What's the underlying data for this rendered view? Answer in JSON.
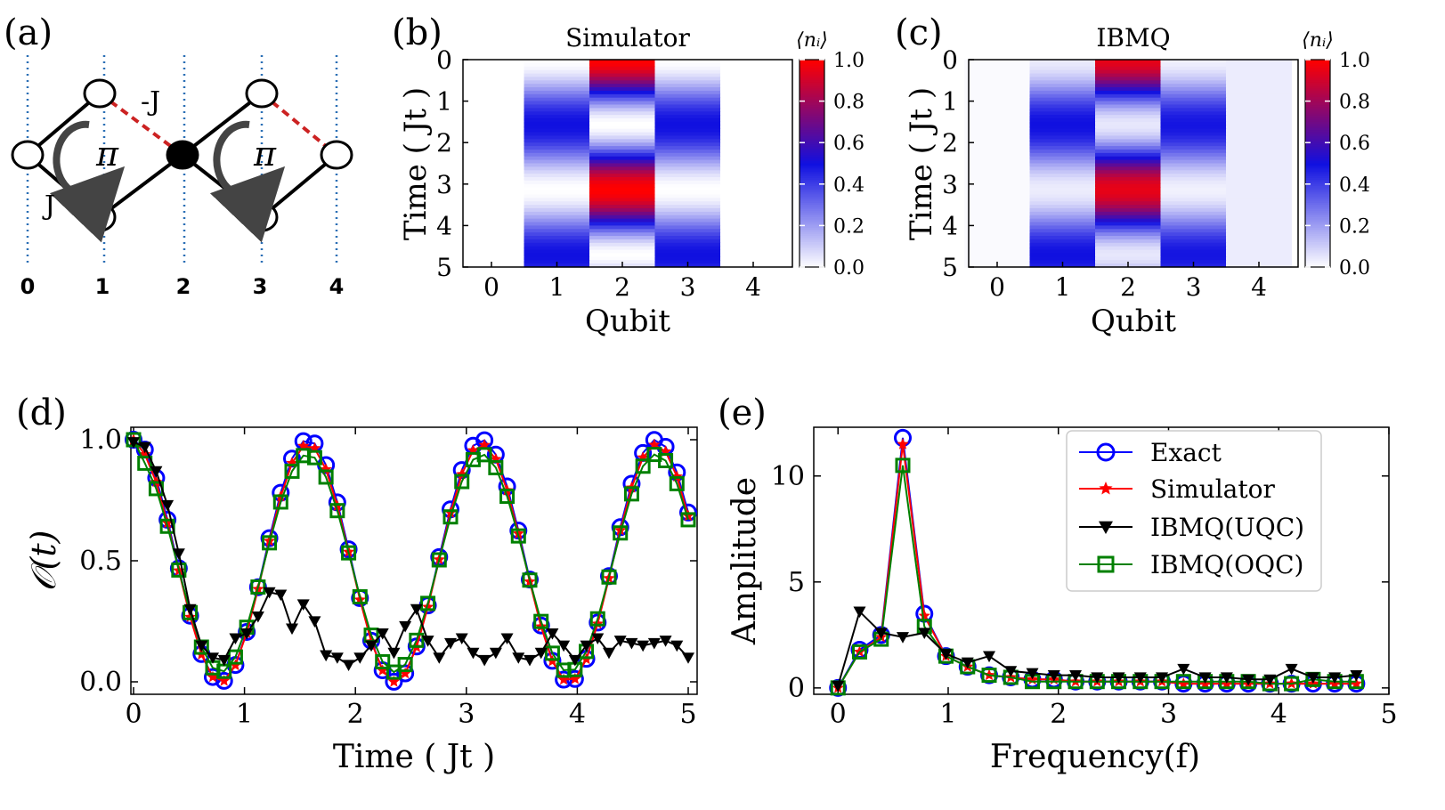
{
  "panel_labels": {
    "a": "(a)",
    "b": "(b)",
    "c": "(c)",
    "d": "(d)",
    "e": "(e)"
  },
  "lattice": {
    "site_labels": [
      "0",
      "1",
      "2",
      "3",
      "4"
    ],
    "coupling_pos": "J",
    "coupling_neg": "-J",
    "flux_left": "π",
    "flux_right": "π"
  },
  "chart_data": [
    {
      "type": "heatmap",
      "id": "b",
      "title": "Simulator",
      "xlabel": "Qubit",
      "ylabel": "Time ( Jt )",
      "xticks": [
        "0",
        "1",
        "2",
        "3",
        "4"
      ],
      "yticks": [
        "0",
        "1",
        "2",
        "3",
        "4",
        "5"
      ],
      "colorbar_label": "⟨nᵢ⟩",
      "colorbar_ticks": [
        "1.0",
        "0.8",
        "0.6",
        "0.4",
        "0.2",
        "0.0"
      ],
      "zlim": [
        0,
        1
      ],
      "t_max": 5,
      "colors": {
        "low": "#ffffff",
        "mid": "#1010e0",
        "high": "#ff0000"
      }
    },
    {
      "type": "heatmap",
      "id": "c",
      "title": "IBMQ",
      "xlabel": "Qubit",
      "ylabel": "Time ( Jt )",
      "xticks": [
        "0",
        "1",
        "2",
        "3",
        "4"
      ],
      "yticks": [
        "0",
        "1",
        "2",
        "3",
        "4",
        "5"
      ],
      "colorbar_label": "⟨nᵢ⟩",
      "colorbar_ticks": [
        "1.0",
        "0.8",
        "0.6",
        "0.4",
        "0.2",
        "0.0"
      ],
      "zlim": [
        0,
        1
      ],
      "t_max": 5
    },
    {
      "type": "line",
      "id": "d",
      "xlabel": "Time ( Jt )",
      "ylabel": "𝒪(t)",
      "xlim": [
        0,
        5
      ],
      "ylim": [
        0,
        1
      ],
      "xticks": [
        "0",
        "1",
        "2",
        "3",
        "4",
        "5"
      ],
      "yticks": [
        "0.0",
        "0.5",
        "1.0"
      ],
      "t_max": 5,
      "n_points": 50,
      "series": [
        {
          "name": "Exact",
          "color": "#0000ff",
          "marker": "circle",
          "period": 1.57,
          "amp": 1.0,
          "gap": 0.4
        },
        {
          "name": "Simulator",
          "color": "#ff0000",
          "marker": "star",
          "period": 1.57,
          "amp": 0.98,
          "gap": 0.4
        },
        {
          "name": "IBMQ(UQC)",
          "color": "#000000",
          "marker": "triangle-down",
          "values": [
            0.99,
            0.97,
            0.87,
            0.73,
            0.53,
            0.3,
            0.15,
            0.1,
            0.09,
            0.18,
            0.2,
            0.27,
            0.37,
            0.36,
            0.22,
            0.32,
            0.25,
            0.11,
            0.1,
            0.07,
            0.1,
            0.15,
            0.2,
            0.12,
            0.23,
            0.3,
            0.17,
            0.1,
            0.16,
            0.18,
            0.12,
            0.09,
            0.12,
            0.18,
            0.1,
            0.09,
            0.12,
            0.2,
            0.15,
            0.09,
            0.15,
            0.18,
            0.12,
            0.17,
            0.16,
            0.15,
            0.16,
            0.17,
            0.15,
            0.1
          ]
        },
        {
          "name": "IBMQ(OQC)",
          "color": "#008000",
          "marker": "square",
          "period": 1.57,
          "amp": 0.9,
          "gap": 0.4
        }
      ]
    },
    {
      "type": "line",
      "id": "e",
      "xlabel": "Frequency(f)",
      "ylabel": "Amplitude",
      "xlim": [
        -0.22,
        5
      ],
      "ylim": [
        -0.3,
        12.3
      ],
      "xticks": [
        "0",
        "1",
        "2",
        "3",
        "4",
        "5"
      ],
      "yticks": [
        "0",
        "5",
        "10"
      ],
      "legend_position": "top-right",
      "x": [
        0.0,
        0.196,
        0.392,
        0.588,
        0.784,
        0.98,
        1.176,
        1.372,
        1.568,
        1.764,
        1.96,
        2.156,
        2.352,
        2.548,
        2.744,
        2.94,
        3.136,
        3.332,
        3.528,
        3.724,
        3.92,
        4.116,
        4.312,
        4.508,
        4.704
      ],
      "series": [
        {
          "name": "Exact",
          "color": "#0000ff",
          "marker": "circle",
          "values": [
            0.0,
            1.8,
            2.5,
            11.8,
            3.5,
            1.5,
            1.0,
            0.6,
            0.5,
            0.4,
            0.4,
            0.3,
            0.3,
            0.3,
            0.3,
            0.3,
            0.2,
            0.2,
            0.2,
            0.2,
            0.2,
            0.2,
            0.2,
            0.2,
            0.2
          ]
        },
        {
          "name": "Simulator",
          "color": "#ff0000",
          "marker": "star",
          "values": [
            0.0,
            1.7,
            2.4,
            11.5,
            3.4,
            1.5,
            1.0,
            0.6,
            0.5,
            0.4,
            0.4,
            0.3,
            0.3,
            0.3,
            0.3,
            0.3,
            0.2,
            0.2,
            0.2,
            0.2,
            0.2,
            0.2,
            0.2,
            0.2,
            0.2
          ]
        },
        {
          "name": "IBMQ(UQC)",
          "color": "#000000",
          "marker": "triangle-down",
          "values": [
            0.1,
            3.6,
            2.6,
            2.4,
            2.6,
            1.6,
            1.2,
            1.5,
            0.8,
            0.7,
            0.6,
            0.6,
            0.5,
            0.5,
            0.5,
            0.5,
            0.9,
            0.5,
            0.5,
            0.4,
            0.4,
            0.9,
            0.5,
            0.5,
            0.6
          ]
        },
        {
          "name": "IBMQ(OQC)",
          "color": "#008000",
          "marker": "square",
          "values": [
            0.0,
            1.7,
            2.3,
            10.5,
            2.9,
            1.5,
            1.0,
            0.6,
            0.5,
            0.3,
            0.3,
            0.3,
            0.3,
            0.3,
            0.3,
            0.3,
            0.3,
            0.3,
            0.3,
            0.3,
            0.2,
            0.2,
            0.4,
            0.3,
            0.3
          ]
        }
      ]
    }
  ]
}
